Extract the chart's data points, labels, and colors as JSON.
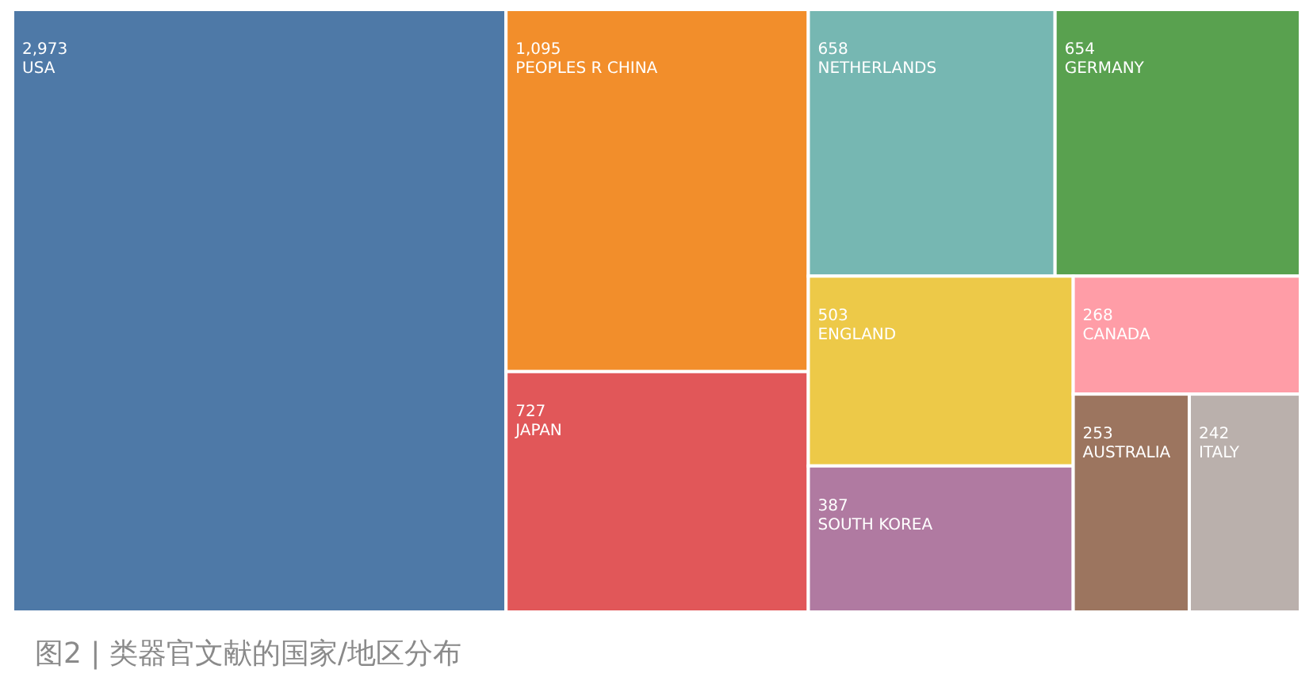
{
  "chart_data": {
    "type": "other",
    "title": "图2 | 类器官文献的国家/地区分布",
    "categories": [
      "USA",
      "PEOPLES R CHINA",
      "JAPAN",
      "NETHERLANDS",
      "GERMANY",
      "ENGLAND",
      "SOUTH KOREA",
      "CANADA",
      "AUSTRALIA",
      "ITALY"
    ],
    "values": [
      2973,
      1095,
      727,
      658,
      654,
      503,
      387,
      268,
      253,
      242
    ],
    "colors": [
      "#4e79a7",
      "#f28e2b",
      "#e15759",
      "#76b7b2",
      "#59a14f",
      "#edc948",
      "#b07aa1",
      "#ff9da7",
      "#9c755f",
      "#bab0ac"
    ],
    "value_labels": [
      "2,973",
      "1,095",
      "727",
      "658",
      "654",
      "503",
      "387",
      "268",
      "253",
      "242"
    ]
  }
}
